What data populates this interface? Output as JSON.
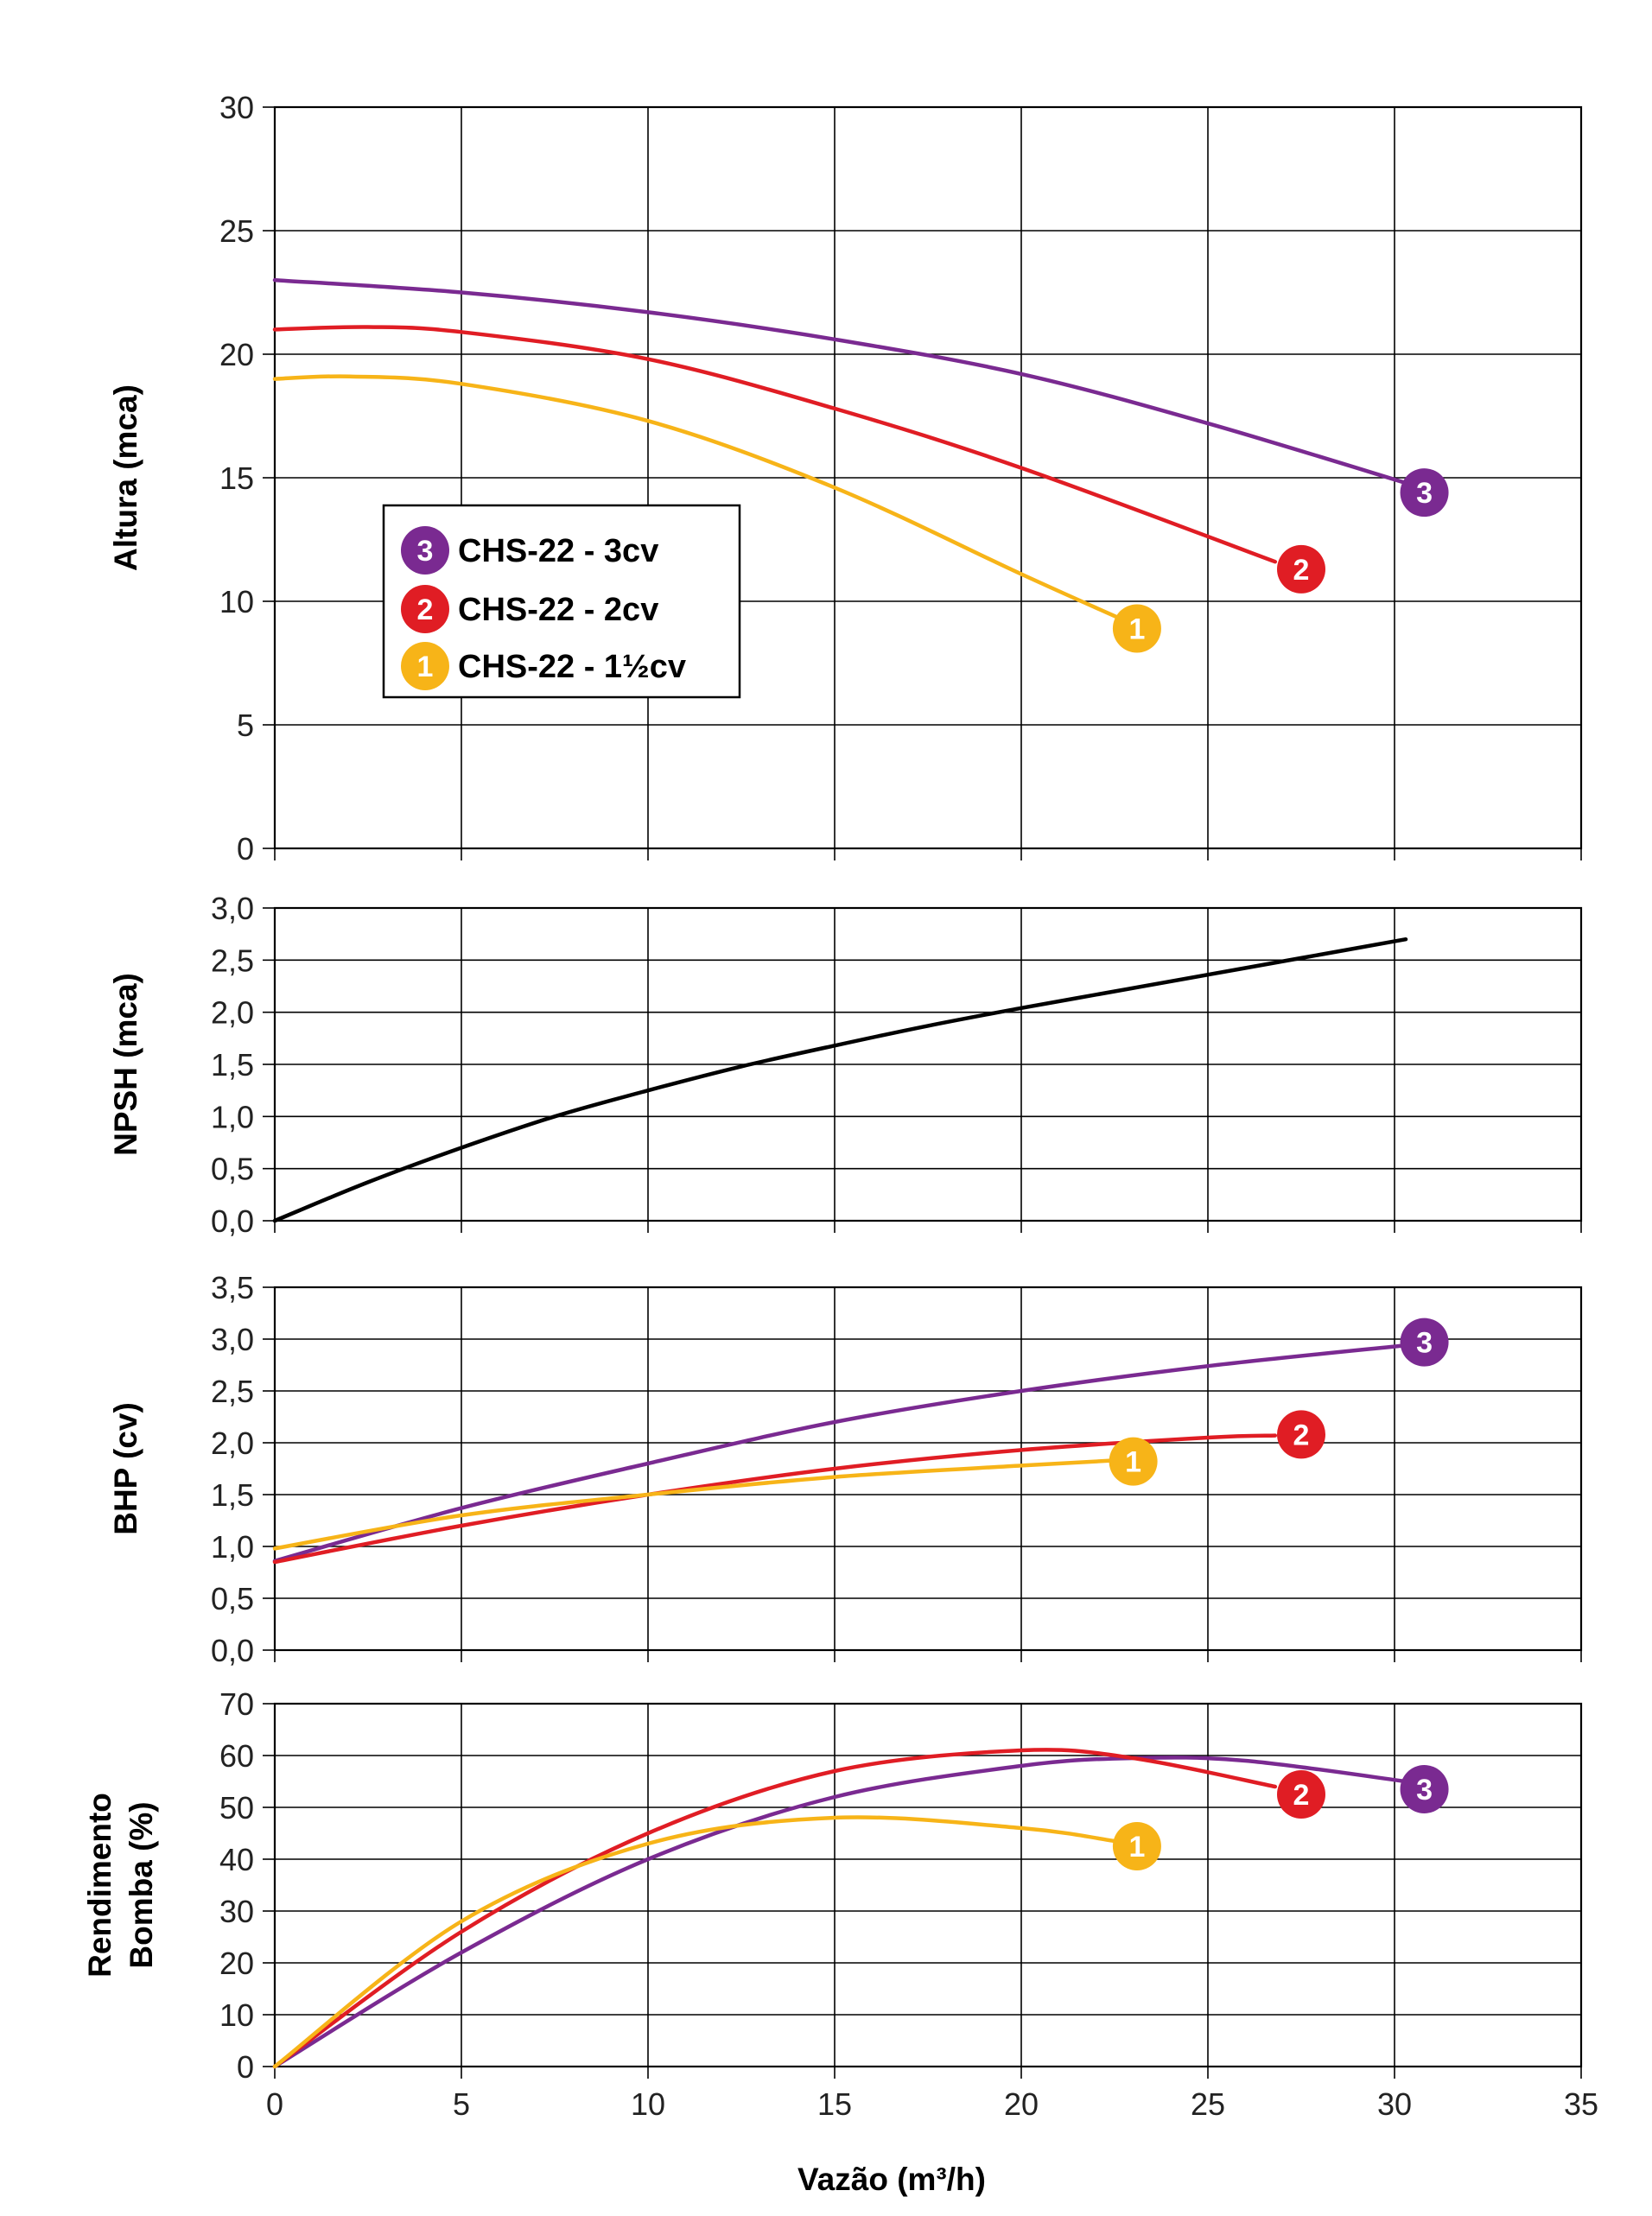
{
  "colors": {
    "c3": "#7a2a91",
    "c2": "#e01d24",
    "c1": "#f7b418",
    "npsh": "#000000",
    "grid": "#000000"
  },
  "x_axis": {
    "label": "Vazão (m³/h)",
    "range": [
      0,
      35
    ],
    "ticks": [
      0,
      5,
      10,
      15,
      20,
      25,
      30,
      35
    ],
    "tick_labels": [
      "0",
      "5",
      "10",
      "15",
      "20",
      "25",
      "30",
      "35"
    ]
  },
  "legend": {
    "items": [
      {
        "badge": "3",
        "label": "CHS-22 - 3cv",
        "color_key": "c3"
      },
      {
        "badge": "2",
        "label": "CHS-22 - 2cv",
        "color_key": "c2"
      },
      {
        "badge": "1",
        "label": "CHS-22 - 1½cv",
        "color_key": "c1"
      }
    ]
  },
  "chart_data": [
    {
      "type": "line",
      "id": "altura",
      "ylabel": "Altura (mca)",
      "ylim": [
        0,
        30
      ],
      "yticks": [
        0,
        5,
        10,
        15,
        20,
        25,
        30
      ],
      "ytick_labels": [
        "0",
        "5",
        "10",
        "15",
        "20",
        "25",
        "30"
      ],
      "grid": true,
      "series": [
        {
          "name": "CHS-22 - 3cv",
          "badge": "3",
          "color_key": "c3",
          "x": [
            0,
            5,
            10,
            15,
            20,
            25,
            30.5
          ],
          "y": [
            23.0,
            22.5,
            21.7,
            20.6,
            19.2,
            17.2,
            14.7
          ],
          "badge_at": [
            30.8,
            14.4
          ]
        },
        {
          "name": "CHS-22 - 2cv",
          "badge": "2",
          "color_key": "c2",
          "x": [
            0,
            2.5,
            5,
            10,
            15,
            20,
            26.8
          ],
          "y": [
            21.0,
            21.1,
            20.9,
            19.8,
            17.8,
            15.4,
            11.6
          ],
          "badge_at": [
            27.5,
            11.3
          ]
        },
        {
          "name": "CHS-22 - 1½cv",
          "badge": "1",
          "color_key": "c1",
          "x": [
            0,
            2,
            5,
            10,
            15,
            20,
            22.8
          ],
          "y": [
            19.0,
            19.1,
            18.8,
            17.3,
            14.6,
            11.1,
            9.2
          ],
          "badge_at": [
            23.1,
            8.9
          ]
        }
      ]
    },
    {
      "type": "line",
      "id": "npsh",
      "ylabel": "NPSH (mca)",
      "ylim": [
        0,
        3
      ],
      "yticks": [
        0,
        0.5,
        1,
        1.5,
        2,
        2.5,
        3
      ],
      "ytick_labels": [
        "0,0",
        "0,5",
        "1,0",
        "1,5",
        "2,0",
        "2,5",
        "3,0"
      ],
      "grid": true,
      "series": [
        {
          "name": "NPSH",
          "color_key": "npsh",
          "x": [
            0,
            2.5,
            5,
            7.5,
            10,
            12.5,
            15,
            17.5,
            20,
            22.5,
            25,
            27.5,
            30.3
          ],
          "y": [
            0,
            0.37,
            0.7,
            1.0,
            1.25,
            1.48,
            1.68,
            1.87,
            2.04,
            2.2,
            2.36,
            2.52,
            2.7
          ]
        }
      ]
    },
    {
      "type": "line",
      "id": "bhp",
      "ylabel": "BHP (cv)",
      "ylim": [
        0,
        3.5
      ],
      "yticks": [
        0,
        0.5,
        1,
        1.5,
        2,
        2.5,
        3,
        3.5
      ],
      "ytick_labels": [
        "0,0",
        "0,5",
        "1,0",
        "1,5",
        "2,0",
        "2,5",
        "3,0",
        "3,5"
      ],
      "grid": true,
      "series": [
        {
          "name": "CHS-22 - 3cv",
          "badge": "3",
          "color_key": "c3",
          "x": [
            0,
            5,
            10,
            15,
            20,
            25,
            30.3
          ],
          "y": [
            0.86,
            1.37,
            1.8,
            2.2,
            2.5,
            2.74,
            2.94
          ],
          "badge_at": [
            30.8,
            2.97
          ]
        },
        {
          "name": "CHS-22 - 2cv",
          "badge": "2",
          "color_key": "c2",
          "x": [
            0,
            5,
            10,
            15,
            20,
            25,
            26.8
          ],
          "y": [
            0.85,
            1.2,
            1.5,
            1.75,
            1.93,
            2.05,
            2.07
          ],
          "badge_at": [
            27.5,
            2.08
          ]
        },
        {
          "name": "CHS-22 - 1½cv",
          "badge": "1",
          "color_key": "c1",
          "x": [
            0,
            5,
            10,
            15,
            20,
            22.5
          ],
          "y": [
            0.98,
            1.3,
            1.5,
            1.67,
            1.78,
            1.83
          ],
          "badge_at": [
            23.0,
            1.82
          ]
        }
      ]
    },
    {
      "type": "line",
      "id": "rendimento",
      "ylabel": "Rendimento Bomba (%)",
      "ylabel_lines": [
        "Rendimento",
        "Bomba (%)"
      ],
      "ylim": [
        0,
        70
      ],
      "yticks": [
        0,
        10,
        20,
        30,
        40,
        50,
        60,
        70
      ],
      "ytick_labels": [
        "0",
        "10",
        "20",
        "30",
        "40",
        "50",
        "60",
        "70"
      ],
      "grid": true,
      "series": [
        {
          "name": "CHS-22 - 3cv",
          "badge": "3",
          "color_key": "c3",
          "x": [
            0,
            5,
            10,
            15,
            20,
            23,
            26,
            30.3
          ],
          "y": [
            0,
            22,
            40,
            52,
            58,
            59.5,
            59,
            55
          ],
          "badge_at": [
            30.8,
            53.5
          ]
        },
        {
          "name": "CHS-22 - 2cv",
          "badge": "2",
          "color_key": "c2",
          "x": [
            0,
            5,
            10,
            15,
            20,
            23,
            26.8
          ],
          "y": [
            0,
            26,
            45,
            57,
            61,
            59.5,
            54
          ],
          "badge_at": [
            27.5,
            52.5
          ]
        },
        {
          "name": "CHS-22 - 1½cv",
          "badge": "1",
          "color_key": "c1",
          "x": [
            0,
            5,
            10,
            15,
            20,
            22.5
          ],
          "y": [
            0,
            28,
            43,
            48,
            46,
            43.5
          ],
          "badge_at": [
            23.1,
            42.5
          ]
        }
      ]
    }
  ]
}
